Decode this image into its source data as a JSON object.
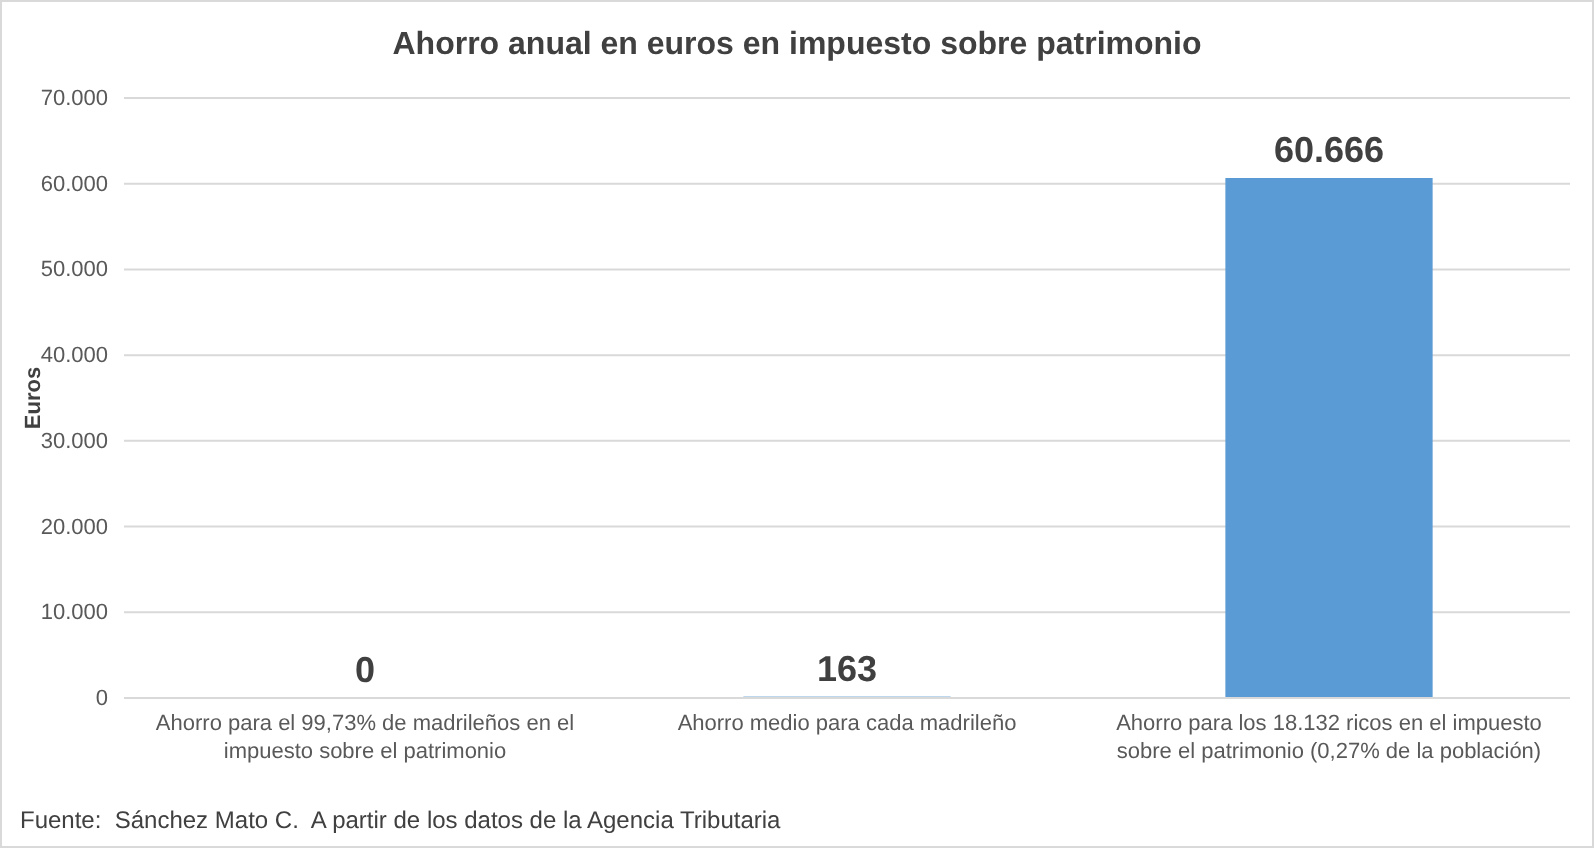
{
  "chart_data": {
    "type": "bar",
    "title": "Ahorro anual en euros en impuesto sobre patrimonio",
    "ylabel": "Euros",
    "categories": [
      "Ahorro para el 99,73% de madrileños en el impuesto sobre el patrimonio",
      "Ahorro medio para cada madrileño",
      "Ahorro para los 18.132 ricos en el impuesto sobre el patrimonio (0,27% de la población)"
    ],
    "values": [
      0,
      163,
      60666
    ],
    "value_labels": [
      "0",
      "163",
      "60.666"
    ],
    "color": "#5b9bd5",
    "ylim": [
      0,
      70000
    ],
    "yticks": [
      {
        "value": 0,
        "label": "0"
      },
      {
        "value": 10000,
        "label": "10.000"
      },
      {
        "value": 20000,
        "label": "20.000"
      },
      {
        "value": 30000,
        "label": "30.000"
      },
      {
        "value": 40000,
        "label": "40.000"
      },
      {
        "value": 50000,
        "label": "50.000"
      },
      {
        "value": 60000,
        "label": "60.000"
      },
      {
        "value": 70000,
        "label": "70.000"
      }
    ],
    "grid": "y",
    "annotations": [
      "Fuente:  Sánchez Mato C.  A partir de los datos de la Agencia Tributaria"
    ]
  }
}
